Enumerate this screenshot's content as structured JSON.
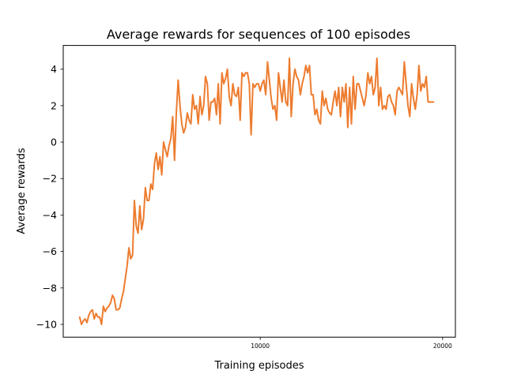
{
  "chart_data": {
    "type": "line",
    "title": "Average rewards for sequences of 100 episodes",
    "xlabel": "Training episodes",
    "ylabel": "Average rewards",
    "xlim": [
      -800,
      20700
    ],
    "ylim": [
      -10.7,
      5.3
    ],
    "xticks": [
      {
        "value": 10000,
        "label": "10000"
      },
      {
        "value": 20000,
        "label": "20000"
      }
    ],
    "yticks": [
      {
        "value": 4,
        "label": "4"
      },
      {
        "value": 2,
        "label": "2"
      },
      {
        "value": 0,
        "label": "0"
      },
      {
        "value": -2,
        "label": "−2"
      },
      {
        "value": -4,
        "label": "−4"
      },
      {
        "value": -6,
        "label": "−6"
      },
      {
        "value": -8,
        "label": "−8"
      },
      {
        "value": -10,
        "label": "−10"
      }
    ],
    "grid": false,
    "legend": "none",
    "series": [
      {
        "color": "#ed7c2f",
        "x": [
          100,
          200,
          300,
          400,
          500,
          600,
          700,
          800,
          900,
          1000,
          1100,
          1200,
          1300,
          1400,
          1500,
          1600,
          1700,
          1800,
          1900,
          2000,
          2100,
          2200,
          2300,
          2400,
          2500,
          2600,
          2700,
          2800,
          2900,
          3000,
          3100,
          3200,
          3300,
          3400,
          3500,
          3600,
          3700,
          3800,
          3900,
          4000,
          4100,
          4200,
          4300,
          4400,
          4500,
          4600,
          4700,
          4800,
          4900,
          5000,
          5100,
          5200,
          5300,
          5400,
          5500,
          5600,
          5700,
          5800,
          5900,
          6000,
          6100,
          6200,
          6300,
          6400,
          6500,
          6600,
          6700,
          6800,
          6900,
          7000,
          7100,
          7200,
          7300,
          7400,
          7500,
          7600,
          7700,
          7800,
          7900,
          8000,
          8100,
          8200,
          8300,
          8400,
          8500,
          8600,
          8700,
          8800,
          8900,
          9000,
          9100,
          9200,
          9300,
          9400,
          9500,
          9600,
          9700,
          9800,
          9900,
          10000,
          10100,
          10200,
          10300,
          10400,
          10500,
          10600,
          10700,
          10800,
          10900,
          11000,
          11100,
          11200,
          11300,
          11400,
          11500,
          11600,
          11700,
          11800,
          11900,
          12000,
          12100,
          12200,
          12300,
          12400,
          12500,
          12600,
          12700,
          12800,
          12900,
          13000,
          13100,
          13200,
          13300,
          13400,
          13500,
          13600,
          13700,
          13800,
          13900,
          14000,
          14100,
          14200,
          14300,
          14400,
          14500,
          14600,
          14700,
          14800,
          14900,
          15000,
          15100,
          15200,
          15300,
          15400,
          15500,
          15600,
          15700,
          15800,
          15900,
          16000,
          16100,
          16200,
          16300,
          16400,
          16500,
          16600,
          16700,
          16800,
          16900,
          17000,
          17100,
          17200,
          17300,
          17400,
          17500,
          17600,
          17700,
          17800,
          17900,
          18000,
          18100,
          18200,
          18300,
          18400,
          18500,
          18600,
          18700,
          18800,
          18900,
          19000,
          19100,
          19200,
          19300,
          19400,
          19500
        ],
        "y": [
          -9.6,
          -10.0,
          -9.8,
          -9.7,
          -9.9,
          -9.5,
          -9.3,
          -9.2,
          -9.7,
          -9.4,
          -9.6,
          -9.6,
          -10.0,
          -9.0,
          -9.3,
          -9.1,
          -9.0,
          -8.8,
          -8.4,
          -8.6,
          -9.2,
          -9.2,
          -9.1,
          -8.6,
          -8.2,
          -7.5,
          -6.8,
          -5.8,
          -6.4,
          -6.2,
          -3.2,
          -4.6,
          -5.0,
          -3.5,
          -4.8,
          -4.2,
          -2.5,
          -3.2,
          -3.2,
          -2.3,
          -2.6,
          -1.2,
          -0.6,
          -1.5,
          -0.8,
          -1.8,
          0.0,
          -0.4,
          -0.8,
          -0.2,
          0.2,
          1.4,
          -1.0,
          1.6,
          3.4,
          2.0,
          1.0,
          0.5,
          0.8,
          1.6,
          1.2,
          1.0,
          2.6,
          1.8,
          2.0,
          1.0,
          2.5,
          1.5,
          2.0,
          3.6,
          3.2,
          1.2,
          2.2,
          2.2,
          2.4,
          1.5,
          3.2,
          1.0,
          3.8,
          3.2,
          3.5,
          4.0,
          2.5,
          2.0,
          3.2,
          2.6,
          2.5,
          3.0,
          1.2,
          3.8,
          3.6,
          3.8,
          3.8,
          3.2,
          0.4,
          3.2,
          3.0,
          3.2,
          3.2,
          2.8,
          3.2,
          3.4,
          2.6,
          4.4,
          3.4,
          2.4,
          1.8,
          2.0,
          1.2,
          3.8,
          3.0,
          2.2,
          3.4,
          2.2,
          2.0,
          4.6,
          1.4,
          3.2,
          4.0,
          3.6,
          3.4,
          2.6,
          3.2,
          3.6,
          4.2,
          3.8,
          4.2,
          2.6,
          2.6,
          1.5,
          1.8,
          1.2,
          1.0,
          2.8,
          2.0,
          2.4,
          1.8,
          1.6,
          1.5,
          2.2,
          2.8,
          2.0,
          3.0,
          1.4,
          3.0,
          2.2,
          3.2,
          0.8,
          3.0,
          1.0,
          3.6,
          1.8,
          3.2,
          3.2,
          2.8,
          2.4,
          2.0,
          2.6,
          3.8,
          3.2,
          3.6,
          2.6,
          3.0,
          4.6,
          2.0,
          3.0,
          1.8,
          2.0,
          1.8,
          2.5,
          2.6,
          2.2,
          2.0,
          1.5,
          2.8,
          3.0,
          2.8,
          2.6,
          4.4,
          3.2,
          2.0,
          1.4,
          3.2,
          2.4,
          1.8,
          2.6,
          4.2,
          2.8,
          3.2,
          3.0,
          3.6,
          2.2,
          2.2,
          2.2,
          2.2
        ]
      }
    ]
  }
}
